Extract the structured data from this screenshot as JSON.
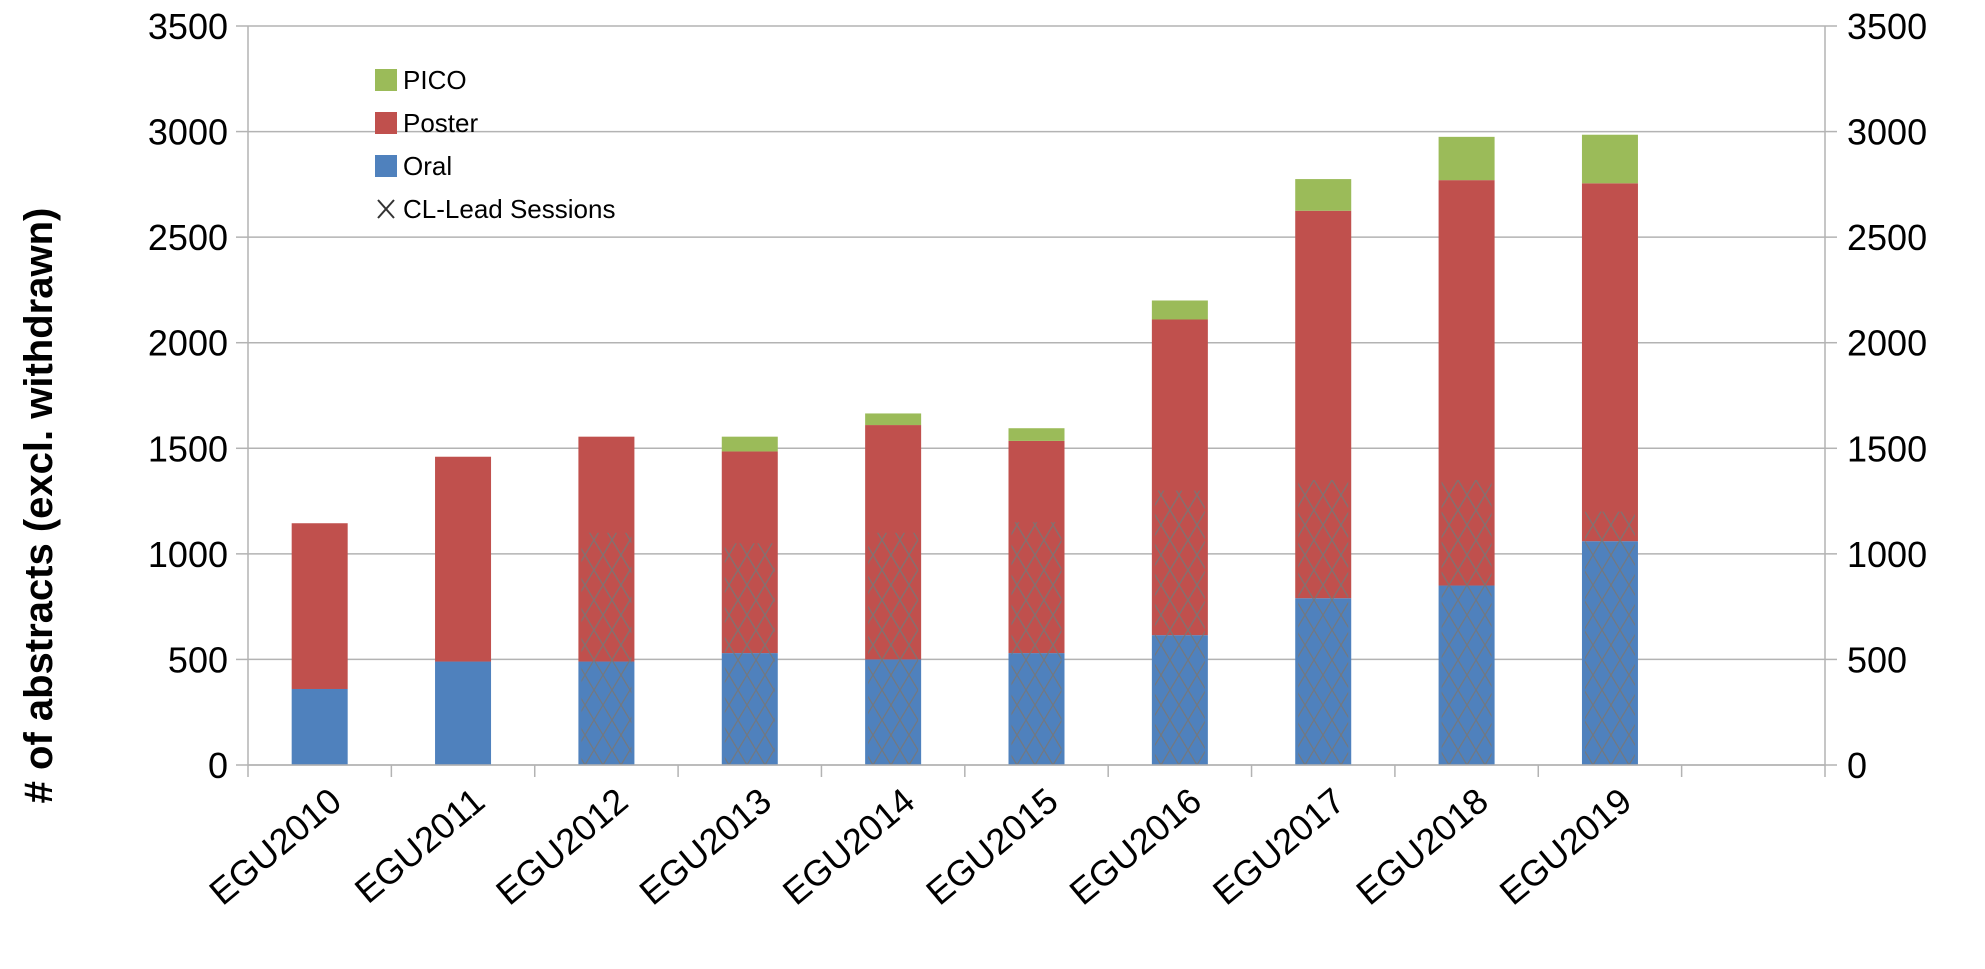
{
  "chart_data": {
    "type": "bar",
    "stacked": true,
    "categories": [
      "EGU2010",
      "EGU2011",
      "EGU2012",
      "EGU2013",
      "EGU2014",
      "EGU2015",
      "EGU2016",
      "EGU2017",
      "EGU2018",
      "EGU2019"
    ],
    "series": [
      {
        "name": "Oral",
        "color": "#4F81BD",
        "values": [
          360,
          490,
          490,
          530,
          500,
          530,
          615,
          790,
          850,
          1060
        ]
      },
      {
        "name": "Poster",
        "color": "#C0504D",
        "values": [
          785,
          970,
          1065,
          955,
          1110,
          1005,
          1495,
          1835,
          1920,
          1695
        ]
      },
      {
        "name": "PICO",
        "color": "#9BBB59",
        "values": [
          0,
          0,
          0,
          70,
          55,
          60,
          90,
          150,
          205,
          230
        ]
      }
    ],
    "cl_lead_sessions": {
      "name": "CL-Lead Sessions",
      "marker": "x",
      "values": [
        null,
        null,
        1100,
        1050,
        1100,
        1150,
        1300,
        1350,
        1350,
        1200
      ]
    },
    "ylabel": "# of abstracts (excl. withdrawn)",
    "xlabel": "",
    "ylim": [
      0,
      3500
    ],
    "yticks": [
      0,
      500,
      1000,
      1500,
      2000,
      2500,
      3000,
      3500
    ],
    "secondary_yticks": [
      0,
      500,
      1000,
      1500,
      2000,
      2500,
      3000,
      3500
    ],
    "grid": true,
    "legend_position": "top-left",
    "legend_order": [
      "PICO",
      "Poster",
      "Oral",
      "CL-Lead Sessions"
    ]
  }
}
